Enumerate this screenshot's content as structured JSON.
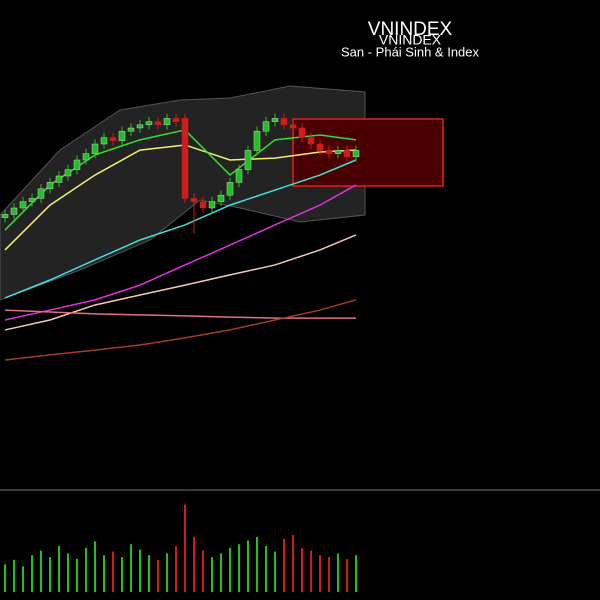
{
  "chart_data": {
    "type": "candlestick",
    "title": "VNINDEX",
    "subtitle": "VNINDEX",
    "exchange": "San - Phái Sinh & Index",
    "ylim": [
      0,
      100
    ],
    "volume_lim": [
      0,
      100
    ],
    "up_color": "#21c021",
    "down_color": "#d01c1c",
    "open": [
      57,
      58,
      60,
      62,
      63,
      66,
      68,
      70,
      72,
      75,
      77,
      80,
      82,
      81,
      84,
      85,
      86,
      87,
      86,
      88,
      88,
      63,
      62,
      60,
      62,
      64,
      68,
      72,
      78,
      84,
      87,
      88,
      86,
      85,
      82,
      80,
      78,
      77,
      78,
      76
    ],
    "close": [
      58,
      60,
      62,
      63,
      66,
      68,
      70,
      72,
      75,
      77,
      80,
      82,
      81,
      84,
      85,
      86,
      87,
      86,
      88,
      87,
      63,
      62,
      60,
      62,
      64,
      68,
      72,
      78,
      84,
      87,
      88,
      86,
      85,
      82,
      80,
      78,
      77,
      78,
      76,
      78
    ],
    "high": [
      59.5,
      61.5,
      63.5,
      64.5,
      67.5,
      69.5,
      71.5,
      73.5,
      76.5,
      78.5,
      81.5,
      83.5,
      83.5,
      85.5,
      86.5,
      87.5,
      88.5,
      88.5,
      89.5,
      89.5,
      89.5,
      64.5,
      63.5,
      63.5,
      65.5,
      69.5,
      73.5,
      79.5,
      85.5,
      88.5,
      89.5,
      89.5,
      87.5,
      86.5,
      83.5,
      81.5,
      79.5,
      79.5,
      79.5,
      79.5
    ],
    "low": [
      55.5,
      56.5,
      58.5,
      60.5,
      61.5,
      64.5,
      66.5,
      68.5,
      70.5,
      73.5,
      75.5,
      78.5,
      79.5,
      79.5,
      82.5,
      83.5,
      84.5,
      84.5,
      84.5,
      85.5,
      61.5,
      52,
      58.5,
      58.5,
      60.5,
      62.5,
      66.5,
      70.5,
      76.5,
      82.5,
      85.5,
      84.5,
      83.5,
      80.5,
      78.5,
      76.5,
      75.5,
      75.5,
      74.5,
      74.5
    ],
    "volume": [
      30,
      35,
      28,
      40,
      45,
      38,
      50,
      42,
      36,
      48,
      55,
      40,
      44,
      38,
      52,
      46,
      40,
      35,
      42,
      50,
      95,
      60,
      45,
      38,
      42,
      48,
      52,
      56,
      60,
      50,
      44,
      58,
      62,
      48,
      45,
      40,
      38,
      42,
      36,
      40
    ],
    "series": [
      {
        "color": "#40e0e0",
        "x": [
          0,
          5,
          10,
          15,
          20,
          25,
          30,
          35,
          39
        ],
        "values": [
          31.9,
          37.5,
          43.8,
          50,
          54.7,
          60.9,
          65.6,
          70.3,
          75
        ]
      },
      {
        "color": "#e030e0",
        "x": [
          0,
          5,
          10,
          15,
          20,
          25,
          30,
          35,
          39
        ],
        "values": [
          25,
          28.1,
          31.3,
          35.9,
          42.2,
          48.4,
          54.7,
          60.9,
          67.2
        ]
      },
      {
        "color": "#f0f070",
        "x": [
          0,
          5,
          10,
          15,
          20,
          25,
          30,
          35,
          39
        ],
        "values": [
          46.9,
          60.9,
          70.3,
          78.1,
          79.7,
          75,
          75.6,
          77.5,
          78.1
        ]
      },
      {
        "color": "#30e030",
        "x": [
          0,
          5,
          10,
          15,
          20,
          25,
          30,
          35,
          39
        ],
        "values": [
          53.1,
          67.2,
          76.6,
          81.3,
          84.4,
          70.3,
          81.3,
          82.8,
          81.3
        ]
      },
      {
        "color": "#f5c8b8",
        "x": [
          0,
          5,
          10,
          15,
          20,
          25,
          30,
          35,
          39
        ],
        "values": [
          21.9,
          25,
          29.7,
          32.8,
          35.9,
          39.1,
          42.2,
          46.9,
          51.6
        ]
      },
      {
        "color": "#e07080",
        "x": [
          0,
          5,
          10,
          15,
          20,
          25,
          30,
          35,
          39
        ],
        "values": [
          28.1,
          27.5,
          26.9,
          26.6,
          26.3,
          25.9,
          25.6,
          25.6,
          25.6
        ]
      },
      {
        "color": "#a83a28",
        "x": [
          0,
          5,
          10,
          15,
          20,
          25,
          30,
          35,
          39
        ],
        "values": [
          12.5,
          14.1,
          15.6,
          17.2,
          19.4,
          21.9,
          25,
          28.1,
          31.3
        ]
      }
    ]
  }
}
